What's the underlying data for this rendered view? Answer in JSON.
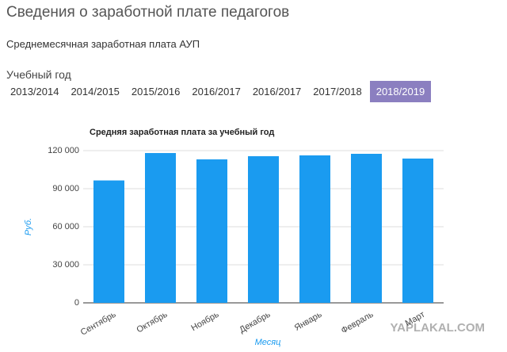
{
  "header": {
    "title": "Сведения о заработной плате педагогов",
    "subtitle": "Среднемесячная заработная плата АУП",
    "year_label": "Учебный год"
  },
  "tabs": [
    "2013/2014",
    "2014/2015",
    "2015/2016",
    "2016/2017",
    "2016/2017",
    "2017/2018",
    "2018/2019"
  ],
  "active_tab": 6,
  "watermark": "YAPLAKAL.COM",
  "chart_data": {
    "type": "bar",
    "title": "Средняя заработная плата за учебный год",
    "x_label": "Месяц",
    "y_label": "Руб.",
    "categories": [
      "Сентябрь",
      "Октябрь",
      "Ноябрь",
      "Декабрь",
      "Январь",
      "Февраль",
      "Март"
    ],
    "values": [
      96500,
      118100,
      113100,
      115600,
      116250,
      117500,
      113750
    ],
    "color": "#1a9bf0",
    "ylim": [
      0,
      120000
    ],
    "yticks": [
      0,
      {
        "value": 30000,
        "label": "30 000"
      },
      {
        "value": 60000,
        "label": "60 000"
      },
      {
        "value": 90000,
        "label": "90 000"
      },
      {
        "value": 120000,
        "label": "120 000"
      }
    ],
    "grid": true
  }
}
